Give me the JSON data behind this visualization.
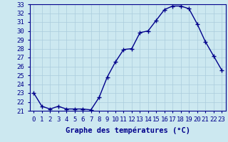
{
  "hours": [
    0,
    1,
    2,
    3,
    4,
    5,
    6,
    7,
    8,
    9,
    10,
    11,
    12,
    13,
    14,
    15,
    16,
    17,
    18,
    19,
    20,
    21,
    22,
    23
  ],
  "temps": [
    23.0,
    21.5,
    21.2,
    21.5,
    21.2,
    21.2,
    21.2,
    21.1,
    22.5,
    24.8,
    26.5,
    27.9,
    28.0,
    29.8,
    30.0,
    31.2,
    32.4,
    32.8,
    32.8,
    32.5,
    30.8,
    28.8,
    27.2,
    25.6
  ],
  "line_color": "#00008B",
  "marker": "+",
  "bg_color": "#cce8f0",
  "grid_color": "#aaccdd",
  "axis_color": "#00008B",
  "xlabel": "Graphe des températures (°C)",
  "ylim": [
    21,
    33
  ],
  "yticks": [
    21,
    22,
    23,
    24,
    25,
    26,
    27,
    28,
    29,
    30,
    31,
    32,
    33
  ],
  "label_color": "#00008B",
  "xlabel_fontsize": 7.5,
  "tick_fontsize": 6.5,
  "line_width": 1.0,
  "marker_size": 4,
  "fig_width": 3.2,
  "fig_height": 2.0
}
